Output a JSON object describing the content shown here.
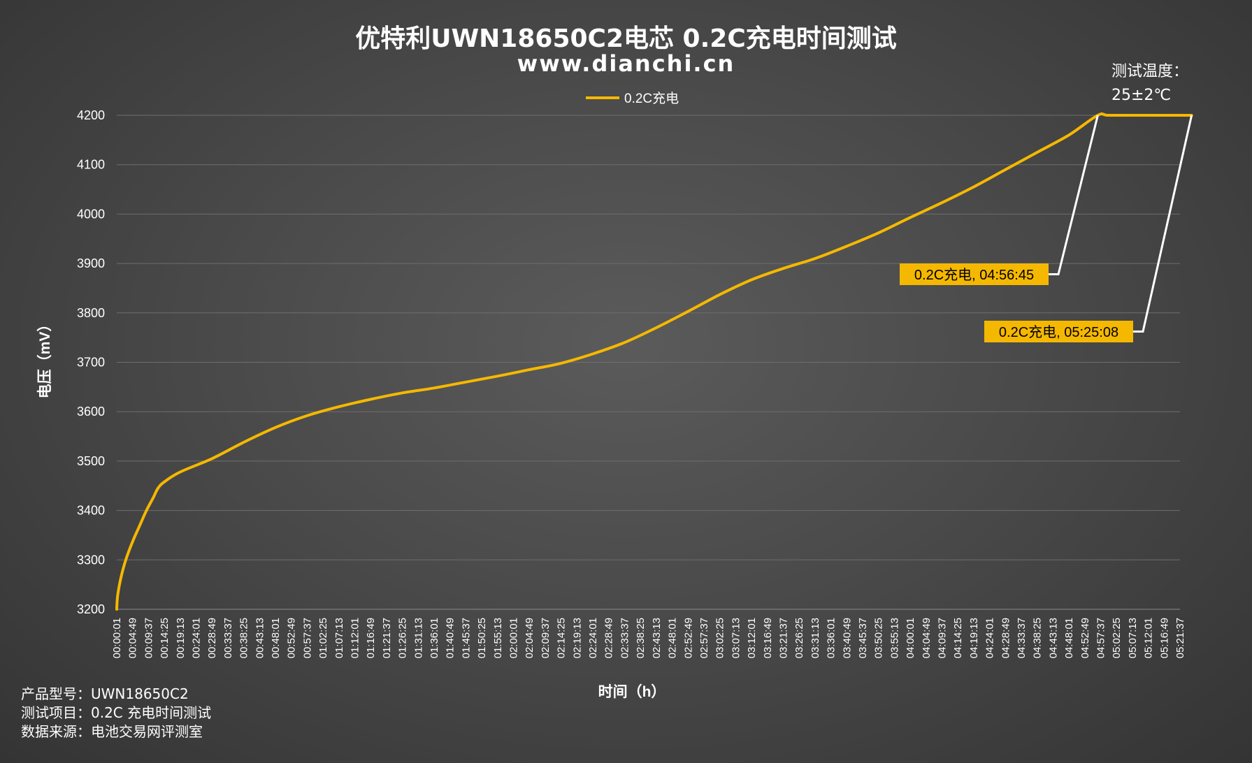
{
  "title": "优特利UWN18650C2电芯 0.2C充电时间测试",
  "subtitle": "www.dianchi.cn",
  "test_temp": {
    "label": "测试温度：",
    "value": "25±2℃"
  },
  "footer": {
    "model": "产品型号：UWN18650C2",
    "item": "测试项目：0.2C 充电时间测试",
    "source": "数据来源：电池交易网评测室"
  },
  "colors": {
    "line": "#f5b800",
    "callout_bg": "#f5b800",
    "leader": "#ffffff"
  },
  "chart_data": {
    "type": "line",
    "title": "优特利UWN18650C2电芯 0.2C充电时间测试",
    "xlabel": "时间（h）",
    "ylabel": "电压（mV）",
    "ylim": [
      3200,
      4200
    ],
    "yticks": [
      3200,
      3300,
      3400,
      3500,
      3600,
      3700,
      3800,
      3900,
      4000,
      4100,
      4200
    ],
    "x_start_seconds": 1,
    "x_step_seconds": 288,
    "x_ticks": [
      "00:00:01",
      "00:04:49",
      "00:09:37",
      "00:14:25",
      "00:19:13",
      "00:24:01",
      "00:28:49",
      "00:33:37",
      "00:38:25",
      "00:43:13",
      "00:48:01",
      "00:52:49",
      "00:57:37",
      "01:02:25",
      "01:07:13",
      "01:12:01",
      "01:16:49",
      "01:21:37",
      "01:26:25",
      "01:31:13",
      "01:36:01",
      "01:40:49",
      "01:45:37",
      "01:50:25",
      "01:55:13",
      "02:00:01",
      "02:04:49",
      "02:09:37",
      "02:14:25",
      "02:19:13",
      "02:24:01",
      "02:28:49",
      "02:33:37",
      "02:38:25",
      "02:43:13",
      "02:48:01",
      "02:52:49",
      "02:57:37",
      "03:02:25",
      "03:07:13",
      "03:12:01",
      "03:16:49",
      "03:21:37",
      "03:26:25",
      "03:31:13",
      "03:36:01",
      "03:40:49",
      "03:45:37",
      "03:50:25",
      "03:55:13",
      "04:00:01",
      "04:04:49",
      "04:09:37",
      "04:14:25",
      "04:19:13",
      "04:24:01",
      "04:28:49",
      "04:33:37",
      "04:38:25",
      "04:43:13",
      "04:48:01",
      "04:52:49",
      "04:57:37",
      "05:02:25",
      "05:07:13",
      "05:12:01",
      "05:16:49",
      "05:21:37"
    ],
    "grid": true,
    "legend_position": "top",
    "series": [
      {
        "name": "0.2C充电",
        "x": [
          "00:00:01",
          "00:00:20",
          "00:01:30",
          "00:03:00",
          "00:05:00",
          "00:07:00",
          "00:09:00",
          "00:11:00",
          "00:12:30",
          "00:14:25",
          "00:19:13",
          "00:28:49",
          "00:38:25",
          "00:48:01",
          "00:57:37",
          "01:07:13",
          "01:16:49",
          "01:26:25",
          "01:36:01",
          "01:45:37",
          "01:55:13",
          "02:04:49",
          "02:14:25",
          "02:24:01",
          "02:33:37",
          "02:43:13",
          "02:52:49",
          "03:02:25",
          "03:12:01",
          "03:21:37",
          "03:31:13",
          "03:40:49",
          "03:50:25",
          "04:00:01",
          "04:09:37",
          "04:19:13",
          "04:28:49",
          "04:38:25",
          "04:48:01",
          "04:56:45",
          "05:00:00",
          "05:10:00",
          "05:20:00",
          "05:25:08"
        ],
        "y": [
          3200,
          3230,
          3270,
          3305,
          3340,
          3370,
          3400,
          3425,
          3445,
          3458,
          3478,
          3505,
          3538,
          3568,
          3592,
          3610,
          3625,
          3638,
          3648,
          3660,
          3672,
          3685,
          3698,
          3717,
          3740,
          3770,
          3803,
          3837,
          3867,
          3890,
          3910,
          3935,
          3962,
          3993,
          4023,
          4055,
          4090,
          4125,
          4160,
          4200,
          4200,
          4200,
          4200,
          4200
        ]
      }
    ],
    "annotations": [
      {
        "text": "0.2C充电, 04:56:45",
        "x": "04:56:45",
        "y": 4200
      },
      {
        "text": "0.2C充电, 05:25:08",
        "x": "05:25:08",
        "y": 4200
      }
    ]
  }
}
